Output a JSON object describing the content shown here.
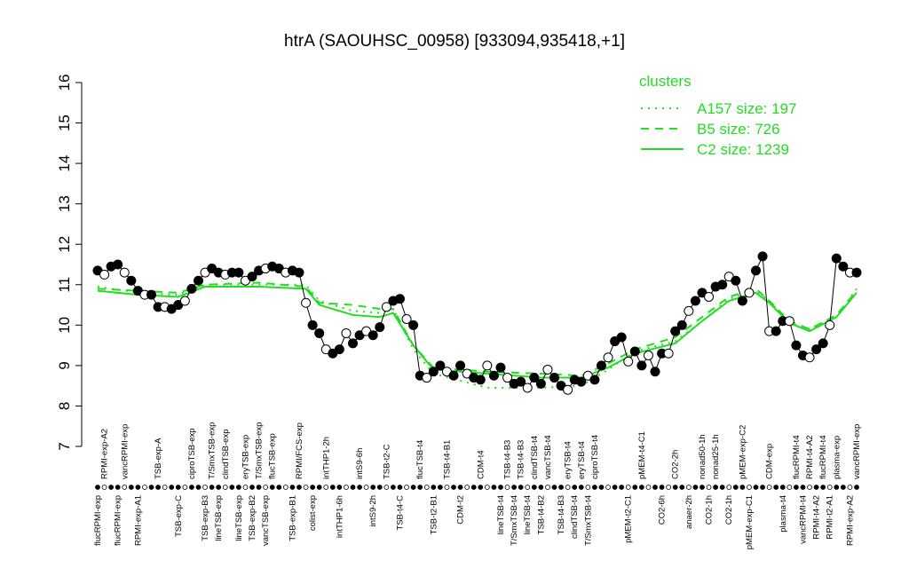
{
  "chart_data": {
    "type": "line",
    "title": "htrA (SAOUHSC_00958) [933094,935418,+1]",
    "ylim": [
      7,
      16
    ],
    "yticks": [
      7,
      8,
      9,
      10,
      11,
      12,
      13,
      14,
      15,
      16
    ],
    "categories": [
      "flucRPMI-exp",
      "RPMI-exp-A2",
      null,
      "flucRPMI-exp",
      "vancRPMI-exp",
      null,
      "RPMI-exp-A1",
      null,
      null,
      "TSB-exp-A",
      null,
      null,
      "TSB-exp-C",
      null,
      "ciproTSB-exp",
      null,
      "TSB-exp-B3",
      "T/SmxTSB-exp",
      "lineTSB-exp",
      "clindTSB-exp",
      null,
      "lineTSB-exp",
      "eryTSB-exp",
      "TSB-exp-B2",
      "T/SmxTSB-exp",
      "vancTSB-exp",
      "flucTSB-exp",
      null,
      null,
      "TSB-exp-B1",
      "RPMI/FCS-exp",
      null,
      "colist-exp",
      null,
      "intTHP1-2h",
      null,
      "intTHP1-6h",
      null,
      null,
      "intS9-6h",
      null,
      "intS9-2h",
      null,
      "TSB-t2-C",
      null,
      "TSB-t4-C",
      null,
      null,
      "flucTSB-t4",
      null,
      "TSB-t2-B1",
      null,
      "TSB-t4-B1",
      null,
      "CDM-t2",
      null,
      null,
      "CDM-t4",
      null,
      null,
      "lineTSB-t4",
      "TSB-t4-B3",
      "T/SmxTSB-t4",
      "TSB-t4-B3",
      "lineTSB-t4",
      "clindTSB-t4",
      "TSB-t4-B2",
      "vancTSB-t4",
      null,
      "TSB-t4-B3",
      "eryTSB-t4",
      "clindTSB-t4",
      "eryTSB-t4",
      "T/SmxTSB-t4",
      "ciproTSB-t4",
      null,
      null,
      null,
      null,
      "pMEM-t2-C1",
      null,
      "pMEM-t4-C1",
      null,
      null,
      "CO2-6h",
      null,
      "CO2-2h",
      null,
      "anaer-2h",
      null,
      "nonad50-1h",
      "CO2-1h",
      "nonad25-1h",
      null,
      "CO2-1h",
      null,
      "pMEM-exp-C2",
      "pMEM-exp-C1",
      null,
      null,
      "CDM-exp",
      null,
      "plasma-t4",
      null,
      "flucRPMI-t4",
      "vancRPMI-t4",
      "RPMI-t4-A2",
      "RPMI-t4-A2",
      "flucRPMI-t4",
      "RPMI-t2-A1",
      "plasma-exp",
      null,
      "RPMI-exp-A2",
      "vancRPMI-exp"
    ],
    "values": [
      11.35,
      11.25,
      11.45,
      11.5,
      11.3,
      11.1,
      10.85,
      10.75,
      10.75,
      10.45,
      10.45,
      10.4,
      10.5,
      10.6,
      10.9,
      11.1,
      11.3,
      11.4,
      11.3,
      11.25,
      11.3,
      11.3,
      11.1,
      11.2,
      11.35,
      11.4,
      11.45,
      11.4,
      11.3,
      11.35,
      11.3,
      10.55,
      10.0,
      9.8,
      9.4,
      9.3,
      9.4,
      9.8,
      9.55,
      9.75,
      9.85,
      9.75,
      9.95,
      10.45,
      10.6,
      10.65,
      10.15,
      10.0,
      8.75,
      8.7,
      8.85,
      9.0,
      8.85,
      8.75,
      9.0,
      8.8,
      8.7,
      8.65,
      9.0,
      8.75,
      8.95,
      8.7,
      8.55,
      8.6,
      8.45,
      8.7,
      8.55,
      8.9,
      8.7,
      8.5,
      8.4,
      8.65,
      8.6,
      8.75,
      8.65,
      9.0,
      9.2,
      9.6,
      9.7,
      9.1,
      9.35,
      9.0,
      9.25,
      8.85,
      9.3,
      9.3,
      9.85,
      10.0,
      10.35,
      10.6,
      10.8,
      10.7,
      10.95,
      11.0,
      11.2,
      11.1,
      10.6,
      10.8,
      11.35,
      11.7,
      9.85,
      9.85,
      10.1,
      10.1,
      9.5,
      9.25,
      9.2,
      9.4,
      9.55,
      10.0,
      11.65,
      11.45,
      11.3,
      11.3
    ],
    "legend_title": "clusters",
    "series": [
      {
        "name": "A157 size: 197",
        "color": "#22dd22",
        "style": "dotted",
        "x": [
          0,
          6,
          12,
          16,
          24,
          31,
          33,
          38,
          42,
          44,
          47,
          50,
          58,
          66,
          72,
          76,
          80,
          86,
          90,
          94,
          98,
          100,
          103,
          106,
          110,
          113
        ],
        "values": [
          10.95,
          10.8,
          10.75,
          11.0,
          11.0,
          11.0,
          10.6,
          10.35,
          10.3,
          10.4,
          9.4,
          8.8,
          8.45,
          8.45,
          8.5,
          8.9,
          9.35,
          9.6,
          10.1,
          10.65,
          10.85,
          10.6,
          10.05,
          9.9,
          10.2,
          10.9
        ]
      },
      {
        "name": "B5 size: 726",
        "color": "#22dd22",
        "style": "dashed",
        "x": [
          0,
          6,
          12,
          16,
          24,
          31,
          33,
          38,
          42,
          44,
          47,
          50,
          58,
          66,
          72,
          76,
          80,
          86,
          90,
          94,
          98,
          100,
          103,
          106,
          110,
          113
        ],
        "values": [
          10.9,
          10.85,
          10.8,
          11.0,
          11.05,
          10.95,
          10.55,
          10.5,
          10.4,
          10.4,
          9.5,
          8.95,
          8.85,
          8.8,
          8.75,
          9.05,
          9.4,
          9.7,
          10.2,
          10.7,
          10.9,
          10.6,
          10.1,
          9.9,
          10.25,
          10.85
        ]
      },
      {
        "name": "C2 size: 1239",
        "color": "#22dd22",
        "style": "solid",
        "x": [
          0,
          6,
          12,
          16,
          24,
          31,
          33,
          38,
          42,
          44,
          47,
          50,
          58,
          66,
          72,
          76,
          80,
          86,
          90,
          94,
          98,
          100,
          103,
          106,
          110,
          113
        ],
        "values": [
          10.85,
          10.75,
          10.7,
          10.95,
          10.95,
          10.9,
          10.5,
          10.25,
          10.2,
          10.3,
          9.5,
          8.9,
          8.8,
          8.7,
          8.7,
          8.95,
          9.3,
          9.55,
          10.1,
          10.6,
          10.8,
          10.55,
          10.05,
          9.85,
          10.2,
          10.8
        ]
      }
    ]
  }
}
